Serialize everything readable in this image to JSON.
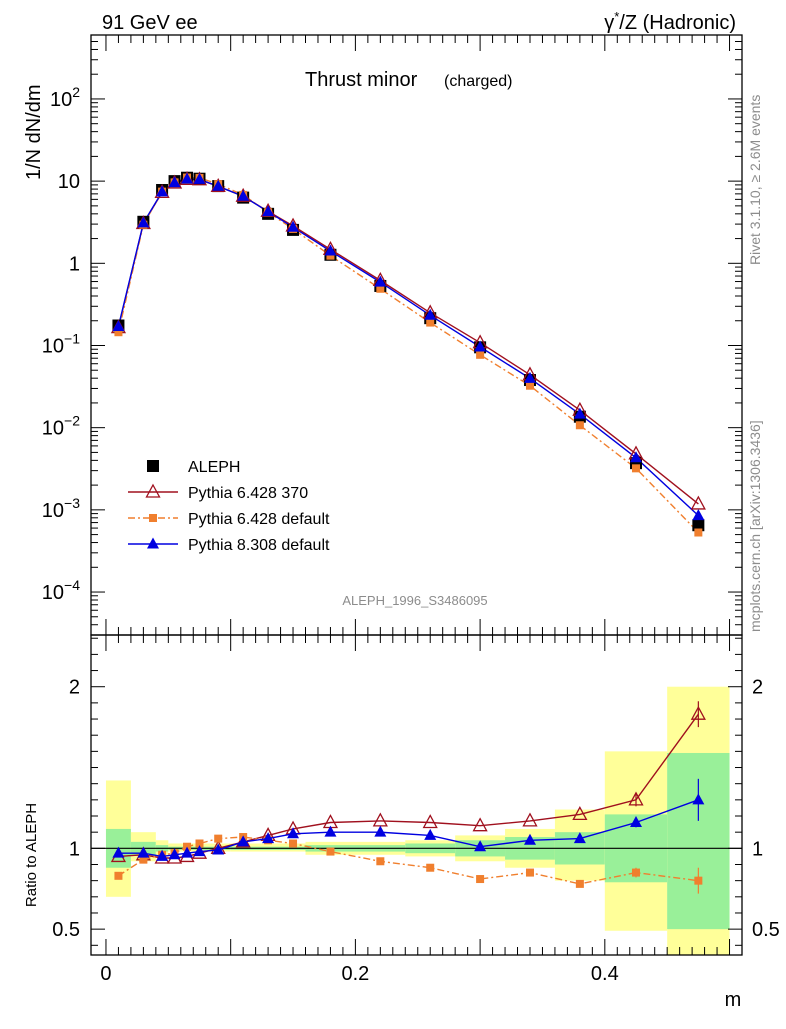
{
  "header": {
    "left": "91 GeV ee",
    "right_prefix": "γ",
    "right_sup": "*",
    "right_suffix": "/Z (Hadronic)"
  },
  "side_labels": {
    "rivet": "Rivet 3.1.10, ≥ 2.6M events",
    "mcplots": "mcplots.cern.ch [arXiv:1306.3436]"
  },
  "chart_data": [
    {
      "type": "scatter",
      "panel": "main",
      "title_main": "Thrust minor",
      "title_sub": "(charged)",
      "ylabel": "1/N dN/dm",
      "yscale": "log",
      "ylim": [
        3e-05,
        600
      ],
      "xlim": [
        -0.012,
        0.51
      ],
      "annotation": "ALEPH_1996_S3486095",
      "legend_position": "bottom-left",
      "x": [
        0.01,
        0.03,
        0.045,
        0.055,
        0.065,
        0.075,
        0.09,
        0.11,
        0.13,
        0.15,
        0.18,
        0.22,
        0.26,
        0.3,
        0.34,
        0.38,
        0.425,
        0.475
      ],
      "series": [
        {
          "name": "ALEPH",
          "color": "#000000",
          "marker": "square",
          "y": [
            0.175,
            3.2,
            7.8,
            10.0,
            11.0,
            10.7,
            8.7,
            6.3,
            4.0,
            2.55,
            1.27,
            0.53,
            0.215,
            0.095,
            0.038,
            0.0136,
            0.0037,
            0.00065
          ]
        },
        {
          "name": "Pythia 6.428 370",
          "color": "#a0101e",
          "marker": "triangle-open",
          "y": [
            0.165,
            3.05,
            7.3,
            9.5,
            10.5,
            10.4,
            8.65,
            6.55,
            4.3,
            2.85,
            1.48,
            0.62,
            0.25,
            0.108,
            0.044,
            0.0163,
            0.0048,
            0.00118
          ]
        },
        {
          "name": "Pythia 6.428 default",
          "color": "#f07f2e",
          "marker": "square-small",
          "dashed": true,
          "y": [
            0.145,
            2.95,
            7.45,
            9.65,
            11.05,
            10.95,
            9.2,
            6.8,
            4.18,
            2.62,
            1.24,
            0.49,
            0.19,
            0.077,
            0.0324,
            0.0107,
            0.0032,
            0.00053
          ]
        },
        {
          "name": "Pythia 8.308 default",
          "color": "#0000e0",
          "marker": "triangle",
          "y": [
            0.17,
            3.1,
            7.4,
            9.6,
            10.6,
            10.5,
            8.65,
            6.55,
            4.25,
            2.75,
            1.41,
            0.59,
            0.233,
            0.096,
            0.0398,
            0.0146,
            0.0043,
            0.00085
          ]
        }
      ]
    },
    {
      "type": "scatter",
      "panel": "ratio",
      "ylabel": "Ratio to ALEPH",
      "xlabel": "m",
      "ylim": [
        0.34,
        2.32
      ],
      "xlim": [
        -0.012,
        0.51
      ],
      "x_ticks": [
        "0",
        "0.2",
        "0.4"
      ],
      "y_ticks": [
        "0.5",
        "1",
        "2"
      ],
      "x": [
        0.01,
        0.03,
        0.045,
        0.055,
        0.065,
        0.075,
        0.09,
        0.11,
        0.13,
        0.15,
        0.18,
        0.22,
        0.26,
        0.3,
        0.34,
        0.38,
        0.425,
        0.475
      ],
      "bins": [
        {
          "lo": 0.0,
          "hi": 0.02,
          "band_in": [
            0.88,
            1.12
          ],
          "band_out": [
            0.7,
            1.42
          ]
        },
        {
          "lo": 0.02,
          "hi": 0.04,
          "band_in": [
            0.96,
            1.04
          ],
          "band_out": [
            0.92,
            1.1
          ]
        },
        {
          "lo": 0.04,
          "hi": 0.05,
          "band_in": [
            0.98,
            1.02
          ],
          "band_out": [
            0.96,
            1.05
          ]
        },
        {
          "lo": 0.05,
          "hi": 0.1,
          "band_in": [
            0.99,
            1.01
          ],
          "band_out": [
            0.98,
            1.03
          ]
        },
        {
          "lo": 0.1,
          "hi": 0.16,
          "band_in": [
            0.99,
            1.01
          ],
          "band_out": [
            0.98,
            1.03
          ]
        },
        {
          "lo": 0.16,
          "hi": 0.24,
          "band_in": [
            0.98,
            1.02
          ],
          "band_out": [
            0.96,
            1.04
          ]
        },
        {
          "lo": 0.24,
          "hi": 0.28,
          "band_in": [
            0.97,
            1.03
          ],
          "band_out": [
            0.95,
            1.05
          ]
        },
        {
          "lo": 0.28,
          "hi": 0.32,
          "band_in": [
            0.95,
            1.05
          ],
          "band_out": [
            0.92,
            1.08
          ]
        },
        {
          "lo": 0.32,
          "hi": 0.36,
          "band_in": [
            0.93,
            1.07
          ],
          "band_out": [
            0.88,
            1.12
          ]
        },
        {
          "lo": 0.36,
          "hi": 0.4,
          "band_in": [
            0.9,
            1.1
          ],
          "band_out": [
            0.8,
            1.24
          ]
        },
        {
          "lo": 0.4,
          "hi": 0.45,
          "band_in": [
            0.79,
            1.21
          ],
          "band_out": [
            0.49,
            1.6
          ]
        },
        {
          "lo": 0.45,
          "hi": 0.5,
          "band_in": [
            0.5,
            1.59
          ],
          "band_out": [
            0.34,
            2.0
          ]
        }
      ],
      "series": [
        {
          "name": "Pythia 6.428 370",
          "color": "#a0101e",
          "marker": "triangle-open",
          "y": [
            0.95,
            0.96,
            0.94,
            0.94,
            0.95,
            0.97,
            1.0,
            1.04,
            1.08,
            1.12,
            1.16,
            1.17,
            1.16,
            1.14,
            1.17,
            1.21,
            1.3,
            1.83
          ],
          "err": [
            0,
            0,
            0,
            0,
            0,
            0,
            0,
            0,
            0,
            0,
            0,
            0,
            0,
            0,
            0,
            0,
            0.04,
            0.08
          ]
        },
        {
          "name": "Pythia 6.428 default",
          "color": "#f07f2e",
          "marker": "square-small",
          "dashed": true,
          "y": [
            0.83,
            0.93,
            0.96,
            0.97,
            1.01,
            1.03,
            1.06,
            1.07,
            1.05,
            1.03,
            0.98,
            0.92,
            0.88,
            0.81,
            0.85,
            0.78,
            0.85,
            0.8
          ],
          "err": [
            0,
            0,
            0,
            0,
            0,
            0,
            0,
            0,
            0,
            0,
            0,
            0,
            0,
            0,
            0,
            0.02,
            0.03,
            0.08
          ]
        },
        {
          "name": "Pythia 8.308 default",
          "color": "#0000e0",
          "marker": "triangle",
          "y": [
            0.97,
            0.97,
            0.95,
            0.96,
            0.97,
            0.98,
            0.99,
            1.04,
            1.06,
            1.09,
            1.1,
            1.1,
            1.08,
            1.01,
            1.05,
            1.06,
            1.16,
            1.3
          ],
          "err": [
            0,
            0,
            0,
            0,
            0,
            0,
            0,
            0,
            0,
            0,
            0,
            0,
            0,
            0,
            0,
            0,
            0.03,
            0.13
          ]
        }
      ]
    }
  ]
}
